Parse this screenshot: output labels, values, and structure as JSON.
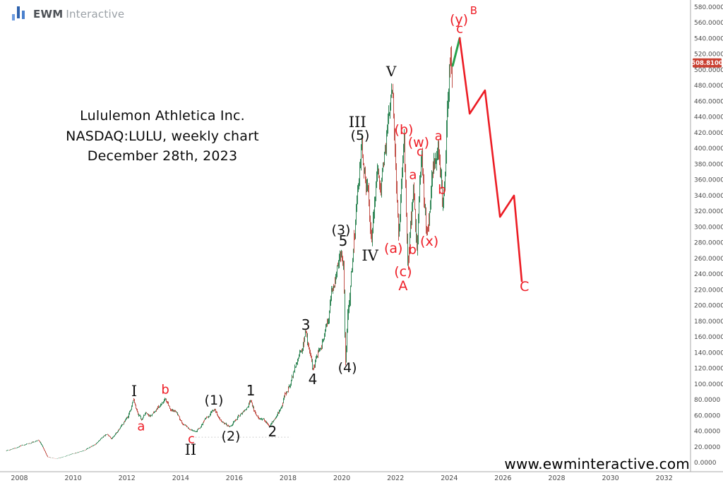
{
  "logo": {
    "brand_bold": "EWM",
    "brand_light": "Interactive",
    "bar_colors": [
      "#6d9ce0",
      "#2e62ae",
      "#4a80cd"
    ]
  },
  "title": {
    "line1": "Lululemon Athletica Inc.",
    "line2": "NASDAQ:LULU, weekly chart",
    "line3": "December 28th, 2023"
  },
  "watermark": "www.ewminteractive.com",
  "last_price": {
    "value": "508.8100",
    "badge_color": "#ca4132",
    "text_color": "#ffffff"
  },
  "chart_data": {
    "type": "candlestick",
    "symbol": "NASDAQ:LULU",
    "timeframe": "weekly",
    "as_of": "December 28th, 2023",
    "last_close": 508.81,
    "y_axis": {
      "min": 0,
      "max": 580,
      "step": 20,
      "decimals": 4,
      "side": "right"
    },
    "x_axis": {
      "tick_years": [
        2008,
        2010,
        2012,
        2014,
        2016,
        2018,
        2020,
        2022,
        2024,
        2026,
        2028,
        2030,
        2032
      ]
    },
    "grid": "off",
    "colors": {
      "up": "#35895a",
      "down": "#c2524a",
      "projection_green": "#27a24d",
      "projection_red": "#ec1c24",
      "label_black": "#111111",
      "label_red": "#ee1c25",
      "axis_line": "#aaaaaa",
      "axis_text": "#4a4a4a",
      "support_line": "#c4c4c4"
    },
    "price_path": [
      [
        2007.49,
        15
      ],
      [
        2007.8,
        18
      ],
      [
        2008.17,
        22
      ],
      [
        2008.54,
        26
      ],
      [
        2008.72,
        29
      ],
      [
        2008.85,
        22
      ],
      [
        2009.06,
        7
      ],
      [
        2009.38,
        5
      ],
      [
        2009.7,
        8
      ],
      [
        2009.98,
        11
      ],
      [
        2010.3,
        14
      ],
      [
        2010.61,
        19
      ],
      [
        2010.85,
        24
      ],
      [
        2011.09,
        32
      ],
      [
        2011.27,
        36
      ],
      [
        2011.43,
        31
      ],
      [
        2011.64,
        38
      ],
      [
        2011.85,
        48
      ],
      [
        2012.06,
        60
      ],
      [
        2012.27,
        79
      ],
      [
        2012.4,
        65
      ],
      [
        2012.56,
        55
      ],
      [
        2012.74,
        64
      ],
      [
        2012.9,
        60
      ],
      [
        2013.11,
        70
      ],
      [
        2013.27,
        74
      ],
      [
        2013.43,
        81
      ],
      [
        2013.58,
        70
      ],
      [
        2013.77,
        64
      ],
      [
        2013.9,
        60
      ],
      [
        2014.06,
        50
      ],
      [
        2014.22,
        46
      ],
      [
        2014.43,
        41
      ],
      [
        2014.56,
        38
      ],
      [
        2014.74,
        46
      ],
      [
        2014.95,
        56
      ],
      [
        2015.11,
        62
      ],
      [
        2015.27,
        68
      ],
      [
        2015.42,
        57
      ],
      [
        2015.61,
        50
      ],
      [
        2015.84,
        46
      ],
      [
        2016.03,
        54
      ],
      [
        2016.21,
        60
      ],
      [
        2016.4,
        65
      ],
      [
        2016.61,
        79
      ],
      [
        2016.76,
        64
      ],
      [
        2016.92,
        58
      ],
      [
        2017.13,
        53
      ],
      [
        2017.34,
        47
      ],
      [
        2017.55,
        57
      ],
      [
        2017.74,
        70
      ],
      [
        2017.95,
        90
      ],
      [
        2018.13,
        105
      ],
      [
        2018.31,
        125
      ],
      [
        2018.5,
        146
      ],
      [
        2018.66,
        163
      ],
      [
        2018.79,
        140
      ],
      [
        2018.92,
        118
      ],
      [
        2019.08,
        134
      ],
      [
        2019.26,
        150
      ],
      [
        2019.42,
        172
      ],
      [
        2019.55,
        195
      ],
      [
        2019.68,
        222
      ],
      [
        2019.84,
        248
      ],
      [
        2019.97,
        262
      ],
      [
        2020.06,
        266
      ],
      [
        2020.1,
        230
      ],
      [
        2020.15,
        133
      ],
      [
        2020.24,
        185
      ],
      [
        2020.37,
        240
      ],
      [
        2020.5,
        295
      ],
      [
        2020.63,
        345
      ],
      [
        2020.76,
        398
      ],
      [
        2020.89,
        362
      ],
      [
        2021.02,
        335
      ],
      [
        2021.13,
        277
      ],
      [
        2021.23,
        320
      ],
      [
        2021.34,
        355
      ],
      [
        2021.44,
        335
      ],
      [
        2021.55,
        372
      ],
      [
        2021.65,
        408
      ],
      [
        2021.76,
        450
      ],
      [
        2021.89,
        486
      ],
      [
        2021.97,
        415
      ],
      [
        2022.05,
        355
      ],
      [
        2022.13,
        300
      ],
      [
        2022.2,
        340
      ],
      [
        2022.28,
        385
      ],
      [
        2022.33,
        410
      ],
      [
        2022.4,
        330
      ],
      [
        2022.47,
        253
      ],
      [
        2022.55,
        295
      ],
      [
        2022.63,
        335
      ],
      [
        2022.68,
        356
      ],
      [
        2022.73,
        318
      ],
      [
        2022.81,
        285
      ],
      [
        2022.89,
        335
      ],
      [
        2022.94,
        370
      ],
      [
        2023.0,
        388
      ],
      [
        2023.07,
        340
      ],
      [
        2023.15,
        305
      ],
      [
        2023.21,
        298
      ],
      [
        2023.31,
        330
      ],
      [
        2023.42,
        362
      ],
      [
        2023.52,
        392
      ],
      [
        2023.6,
        408
      ],
      [
        2023.68,
        378
      ],
      [
        2023.76,
        340
      ],
      [
        2023.84,
        372
      ],
      [
        2023.92,
        425
      ],
      [
        2023.99,
        468
      ],
      [
        2024.07,
        497
      ],
      [
        2024.13,
        508.81
      ]
    ],
    "projections": {
      "green": [
        [
          2024.13,
          505.4
        ],
        [
          2024.39,
          540.4
        ]
      ],
      "red": [
        [
          2024.39,
          540.4
        ],
        [
          2024.76,
          444.2
        ],
        [
          2025.33,
          473.9
        ],
        [
          2025.89,
          312.9
        ],
        [
          2026.41,
          339.9
        ],
        [
          2026.7,
          231.1
        ]
      ]
    },
    "support_dotted_line": {
      "price": 32.4,
      "from_year": 2014.55,
      "to_year": 2018.1
    },
    "wave_labels": [
      {
        "text": "I",
        "year": 2012.27,
        "price": 90.8,
        "color": "black",
        "font": "serif",
        "size": 21
      },
      {
        "text": "a",
        "year": 2012.53,
        "price": 45.9,
        "color": "red",
        "font": "sans",
        "size": 18
      },
      {
        "text": "b",
        "year": 2013.43,
        "price": 92.6,
        "color": "red",
        "font": "sans",
        "size": 18
      },
      {
        "text": "c",
        "year": 2014.4,
        "price": 29.7,
        "color": "red",
        "font": "sans",
        "size": 18
      },
      {
        "text": "II",
        "year": 2014.37,
        "price": 16.2,
        "color": "black",
        "font": "serif",
        "size": 21
      },
      {
        "text": "(1)",
        "year": 2015.24,
        "price": 79.1,
        "color": "black",
        "font": "sans",
        "size": 19
      },
      {
        "text": "(2)",
        "year": 2015.87,
        "price": 33.3,
        "color": "black",
        "font": "sans",
        "size": 19
      },
      {
        "text": "1",
        "year": 2016.61,
        "price": 91.7,
        "color": "black",
        "font": "sans",
        "size": 20
      },
      {
        "text": "2",
        "year": 2017.42,
        "price": 39.6,
        "color": "black",
        "font": "sans",
        "size": 20
      },
      {
        "text": "3",
        "year": 2018.66,
        "price": 175.3,
        "color": "black",
        "font": "sans",
        "size": 20
      },
      {
        "text": "4",
        "year": 2018.92,
        "price": 106.1,
        "color": "black",
        "font": "sans",
        "size": 20
      },
      {
        "text": "(3)",
        "year": 2019.97,
        "price": 295.8,
        "color": "black",
        "font": "sans",
        "size": 19
      },
      {
        "text": "5",
        "year": 2020.05,
        "price": 282.4,
        "color": "black",
        "font": "sans",
        "size": 20
      },
      {
        "text": "(4)",
        "year": 2020.21,
        "price": 120.5,
        "color": "black",
        "font": "sans",
        "size": 19
      },
      {
        "text": "III",
        "year": 2020.58,
        "price": 433.4,
        "color": "black",
        "font": "serif",
        "size": 21
      },
      {
        "text": "(5)",
        "year": 2020.68,
        "price": 416.3,
        "color": "black",
        "font": "sans",
        "size": 19
      },
      {
        "text": "IV",
        "year": 2021.05,
        "price": 263.5,
        "color": "black",
        "font": "serif",
        "size": 21
      },
      {
        "text": "V",
        "year": 2021.84,
        "price": 498.2,
        "color": "black",
        "font": "serif",
        "size": 20
      },
      {
        "text": "(a)",
        "year": 2021.92,
        "price": 272.5,
        "color": "red",
        "font": "sans",
        "size": 19
      },
      {
        "text": "(b)",
        "year": 2022.31,
        "price": 423.5,
        "color": "red",
        "font": "sans",
        "size": 19
      },
      {
        "text": "(c)",
        "year": 2022.28,
        "price": 242.8,
        "color": "red",
        "font": "sans",
        "size": 19
      },
      {
        "text": "A",
        "year": 2022.28,
        "price": 224.8,
        "color": "red",
        "font": "sans",
        "size": 19
      },
      {
        "text": "a",
        "year": 2022.65,
        "price": 366.0,
        "color": "red",
        "font": "sans",
        "size": 18
      },
      {
        "text": "b",
        "year": 2022.63,
        "price": 270.7,
        "color": "red",
        "font": "sans",
        "size": 18
      },
      {
        "text": "c",
        "year": 2022.91,
        "price": 395.7,
        "color": "red",
        "font": "sans",
        "size": 18
      },
      {
        "text": "(w)",
        "year": 2022.86,
        "price": 407.3,
        "color": "red",
        "font": "sans",
        "size": 19
      },
      {
        "text": "(x)",
        "year": 2023.26,
        "price": 281.4,
        "color": "red",
        "font": "sans",
        "size": 19
      },
      {
        "text": "a",
        "year": 2023.6,
        "price": 415.4,
        "color": "red",
        "font": "sans",
        "size": 18
      },
      {
        "text": "b",
        "year": 2023.73,
        "price": 347.1,
        "color": "red",
        "font": "sans",
        "size": 18
      },
      {
        "text": "(y)",
        "year": 2024.36,
        "price": 563.8,
        "color": "red",
        "font": "sans",
        "size": 19
      },
      {
        "text": "c",
        "year": 2024.39,
        "price": 552.1,
        "color": "red",
        "font": "sans",
        "size": 18
      },
      {
        "text": "B",
        "year": 2024.91,
        "price": 575.5,
        "color": "red",
        "font": "sans",
        "size": 15
      },
      {
        "text": "C",
        "year": 2026.8,
        "price": 223.9,
        "color": "red",
        "font": "sans",
        "size": 19
      }
    ]
  }
}
